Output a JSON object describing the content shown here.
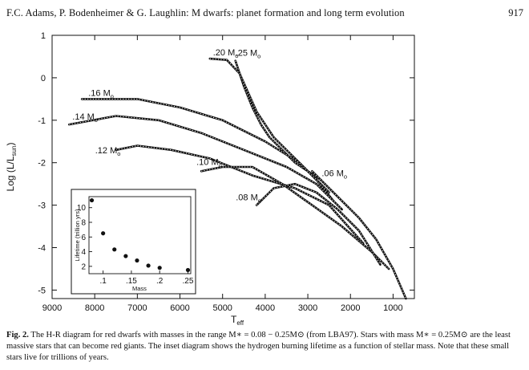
{
  "header": {
    "running_title": "F.C. Adams, P. Bodenheimer & G. Laughlin: M dwarfs: planet formation and long term evolution",
    "page_number": "917"
  },
  "figure": {
    "chart_data": [
      {
        "type": "line",
        "title": "",
        "xlabel": "T_eff",
        "ylabel": "Log (L/L_sun)",
        "x_reversed": true,
        "xlim": [
          9000,
          500
        ],
        "ylim": [
          -5.2,
          1.0
        ],
        "x_ticks": [
          9000,
          8000,
          7000,
          6000,
          5000,
          4000,
          3000,
          2000,
          1000
        ],
        "x_tick_labels": [
          "9000",
          "8000",
          "7000",
          "6000",
          "5000",
          "4000",
          "3000",
          "2000",
          "1000"
        ],
        "y_ticks": [
          1,
          0,
          -1,
          -2,
          -3,
          -4,
          -5
        ],
        "y_tick_labels": [
          "1",
          "0",
          "-1",
          "-2",
          "-3",
          "-4",
          "-5"
        ],
        "grid": false,
        "series": [
          {
            "name": ".25 M⊙",
            "x": [
              4700,
              4500,
              4300,
              4100,
              3900,
              3600,
              3300,
              3000,
              2700
            ],
            "y": [
              0.4,
              -0.2,
              -0.7,
              -1.1,
              -1.4,
              -1.7,
              -2.0,
              -2.2,
              -2.4
            ]
          },
          {
            "name": ".20 M⊙",
            "x": [
              5300,
              4900,
              4600,
              4200,
              3800,
              3300,
              3000,
              2700,
              2500
            ],
            "y": [
              0.45,
              0.42,
              0.1,
              -0.8,
              -1.4,
              -1.9,
              -2.2,
              -2.5,
              -2.7
            ]
          },
          {
            "name": ".16 M⊙",
            "x": [
              8300,
              7000,
              6000,
              5000,
              4000,
              3200,
              2800,
              2400
            ],
            "y": [
              -0.5,
              -0.5,
              -0.7,
              -1.0,
              -1.5,
              -2.0,
              -2.4,
              -2.9
            ]
          },
          {
            "name": ".14 M⊙",
            "x": [
              8600,
              7500,
              6500,
              5500,
              4500,
              3500,
              2800,
              2200
            ],
            "y": [
              -1.1,
              -0.9,
              -1.0,
              -1.3,
              -1.7,
              -2.1,
              -2.5,
              -3.1
            ]
          },
          {
            "name": ".12 M⊙",
            "x": [
              7500,
              7000,
              6200,
              5300,
              4300,
              3300,
              2500,
              1700
            ],
            "y": [
              -1.7,
              -1.6,
              -1.7,
              -1.9,
              -2.3,
              -2.6,
              -3.0,
              -3.9
            ]
          },
          {
            "name": ".10 M⊙",
            "x": [
              5500,
              5000,
              4300,
              3600,
              2900,
              2200,
              1500,
              1100
            ],
            "y": [
              -2.2,
              -2.1,
              -2.1,
              -2.5,
              -3.0,
              -3.5,
              -4.1,
              -4.5
            ]
          },
          {
            "name": ".08 M⊙",
            "x": [
              4200,
              3800,
              3300,
              2800,
              2300,
              1800,
              1300
            ],
            "y": [
              -3.0,
              -2.6,
              -2.5,
              -2.7,
              -3.1,
              -3.6,
              -4.4
            ]
          },
          {
            "name": ".06 M⊙",
            "x": [
              2900,
              2600,
              2200,
              1800,
              1400,
              1000,
              700
            ],
            "y": [
              -2.2,
              -2.5,
              -2.9,
              -3.3,
              -3.8,
              -4.5,
              -5.2
            ]
          }
        ]
      },
      {
        "type": "scatter",
        "title": "",
        "xlabel": "Mass",
        "ylabel": "Lifetime (trillion yrs)",
        "xlim": [
          0.075,
          0.255
        ],
        "ylim": [
          1,
          11.5
        ],
        "x_ticks": [
          0.1,
          0.15,
          0.2,
          0.25
        ],
        "x_tick_labels": [
          ".1",
          ".15",
          ".2",
          ".25"
        ],
        "y_ticks": [
          2,
          4,
          6,
          8,
          10
        ],
        "y_tick_labels": [
          "2",
          "4",
          "6",
          "8",
          "10"
        ],
        "grid": false,
        "x": [
          0.08,
          0.1,
          0.12,
          0.14,
          0.16,
          0.18,
          0.2,
          0.25
        ],
        "y": [
          11.0,
          6.5,
          4.3,
          3.4,
          2.8,
          2.1,
          1.8,
          1.5
        ]
      }
    ],
    "mass_label_main": [
      ".25 M",
      ".20 M",
      ".16 M",
      ".14 M",
      ".12 M",
      ".10 M",
      ".08 M",
      ".06 M"
    ],
    "mass_label_sub": "o",
    "y_title_prefix": "Log (L/L",
    "y_title_sub": "sun",
    "y_title_suffix": ")",
    "x_title_main": "T",
    "x_title_sub": "eff",
    "inset_ylabel": "Lifetime (trillion yrs)",
    "inset_xlabel": "Mass"
  },
  "caption": {
    "label": "Fig. 2.",
    "text": " The H-R diagram for red dwarfs with masses in the range M∗ = 0.08 − 0.25M⊙ (from LBA97). Stars with mass M∗ = 0.25M⊙ are the least massive stars that can become red giants. The inset diagram shows the hydrogen burning lifetime as a function of stellar mass. Note that these small stars live for trillions of years."
  }
}
